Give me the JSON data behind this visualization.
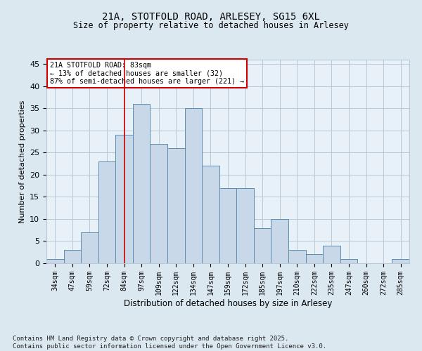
{
  "title1": "21A, STOTFOLD ROAD, ARLESEY, SG15 6XL",
  "title2": "Size of property relative to detached houses in Arlesey",
  "xlabel": "Distribution of detached houses by size in Arlesey",
  "ylabel": "Number of detached properties",
  "categories": [
    "34sqm",
    "47sqm",
    "59sqm",
    "72sqm",
    "84sqm",
    "97sqm",
    "109sqm",
    "122sqm",
    "134sqm",
    "147sqm",
    "159sqm",
    "172sqm",
    "185sqm",
    "197sqm",
    "210sqm",
    "222sqm",
    "235sqm",
    "247sqm",
    "260sqm",
    "272sqm",
    "285sqm"
  ],
  "values": [
    1,
    3,
    7,
    23,
    29,
    36,
    27,
    26,
    35,
    22,
    17,
    17,
    8,
    10,
    3,
    2,
    4,
    1,
    0,
    0,
    1
  ],
  "bar_color": "#c8d8e8",
  "bar_edge_color": "#5b8db0",
  "vline_x": 4,
  "vline_color": "#cc0000",
  "annotation_text": "21A STOTFOLD ROAD: 83sqm\n← 13% of detached houses are smaller (32)\n87% of semi-detached houses are larger (221) →",
  "annotation_box_color": "#ffffff",
  "annotation_box_edge": "#cc0000",
  "ylim": [
    0,
    46
  ],
  "yticks": [
    0,
    5,
    10,
    15,
    20,
    25,
    30,
    35,
    40,
    45
  ],
  "footer": "Contains HM Land Registry data © Crown copyright and database right 2025.\nContains public sector information licensed under the Open Government Licence v3.0.",
  "bg_color": "#dce8f0",
  "plot_bg_color": "#e8f0f8",
  "grid_color": "#b8c8d8"
}
